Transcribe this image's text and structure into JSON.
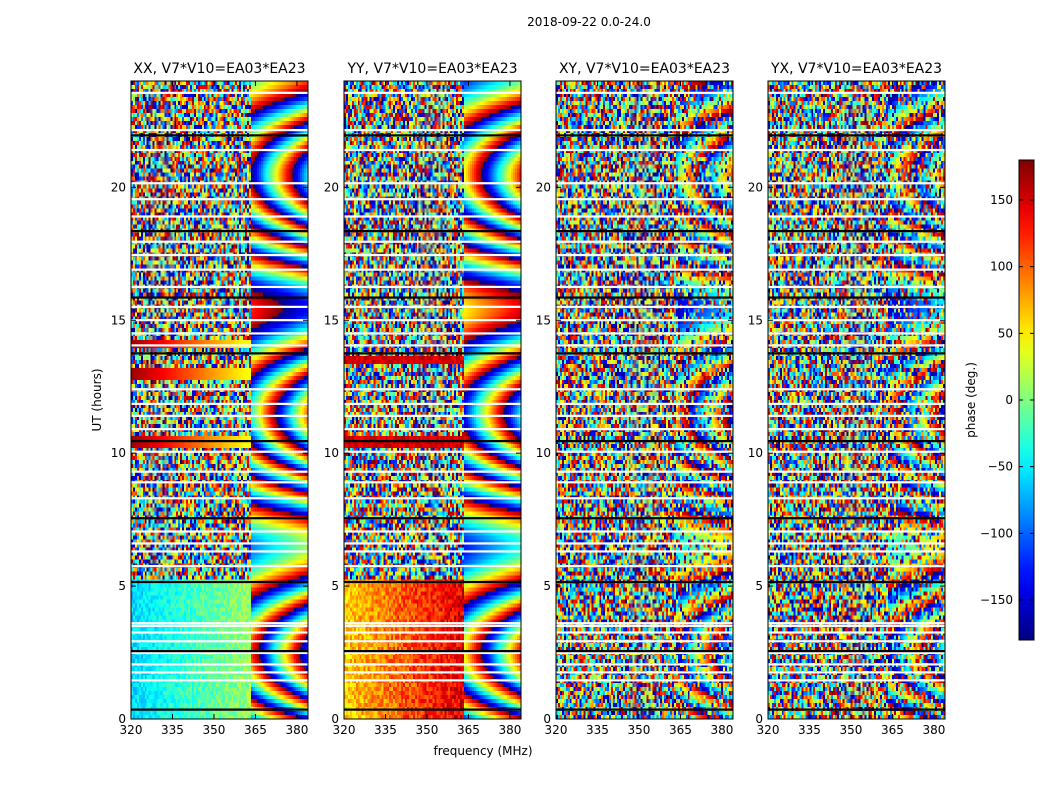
{
  "figure": {
    "suptitle": "2018-09-22 0.0-24.0",
    "xlabel": "frequency (MHz)",
    "ylabel": "UT (hours)",
    "colorbar_label": "phase (deg.)",
    "colorbar_ticks": [
      -150,
      -100,
      -50,
      0,
      50,
      100,
      150
    ],
    "colorbar_tick_labels": [
      "−150",
      "−100",
      "−50",
      "0",
      "50",
      "100",
      "150"
    ],
    "colorbar_range": [
      -180,
      180
    ],
    "colormap": "jet",
    "colormap_stops": [
      "#00007f",
      "#0000ff",
      "#007fff",
      "#00ffff",
      "#7fff7f",
      "#ffff00",
      "#ff7f00",
      "#ff0000",
      "#7f0000"
    ]
  },
  "chart_data": {
    "type": "heatmap",
    "xlim": [
      320,
      384
    ],
    "ylim": [
      0,
      24
    ],
    "xticks": [
      320,
      335,
      350,
      365,
      380
    ],
    "xtick_labels": [
      "320",
      "335",
      "350",
      "365",
      "380"
    ],
    "yticks": [
      0,
      5,
      10,
      15,
      20
    ],
    "ytick_labels": [
      "0",
      "5",
      "10",
      "15",
      "20"
    ],
    "phase_range_deg": [
      -180,
      180
    ],
    "flagged_rows_ut": [
      0.35,
      1.45,
      1.75,
      2.05,
      2.48,
      2.55,
      2.92,
      3.25,
      3.5,
      3.6,
      5.15,
      5.75,
      6.3,
      6.6,
      7.05,
      7.55,
      8.3,
      8.9,
      9.3,
      10.05,
      10.45,
      10.9,
      11.4,
      11.85,
      12.4,
      13.75,
      14.05,
      14.5,
      15.0,
      15.5,
      15.85,
      16.25,
      16.9,
      17.45,
      17.95,
      18.35,
      18.9,
      19.55,
      20.15,
      21.4,
      21.95,
      22.15,
      23.55
    ],
    "panels": [
      {
        "title": "XX, V7*V10=EA03*EA23",
        "correlation": "XX"
      },
      {
        "title": "YY, V7*V10=EA03*EA23",
        "correlation": "YY"
      },
      {
        "title": "XY, V7*V10=EA03*EA23",
        "correlation": "XY"
      },
      {
        "title": "YX, V7*V10=EA03*EA23",
        "correlation": "YX"
      }
    ]
  }
}
